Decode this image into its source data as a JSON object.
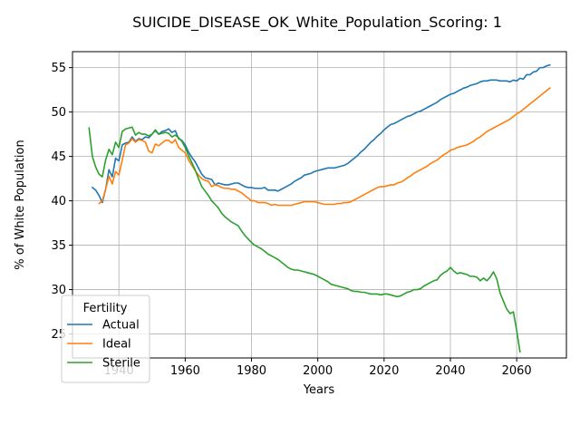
{
  "chart_data": {
    "type": "line",
    "title": "SUICIDE_DISEASE_OK_White_Population_Scoring: 1",
    "xlabel": "Years",
    "ylabel": "% of White Population",
    "xlim": [
      1926,
      2075
    ],
    "ylim": [
      22.3,
      56.8
    ],
    "xticks": [
      1940,
      1960,
      1980,
      2000,
      2020,
      2040,
      2060
    ],
    "yticks": [
      25,
      30,
      35,
      40,
      45,
      50,
      55
    ],
    "grid": true,
    "legend": {
      "title": "Fertility",
      "placement": "lower-left"
    },
    "series": [
      {
        "name": "Actual",
        "color": "#1f77b4",
        "x": [
          1932,
          1933,
          1934,
          1935,
          1936,
          1937,
          1938,
          1939,
          1940,
          1941,
          1942,
          1943,
          1944,
          1945,
          1946,
          1947,
          1948,
          1949,
          1950,
          1951,
          1952,
          1953,
          1954,
          1955,
          1956,
          1957,
          1958,
          1959,
          1960,
          1961,
          1962,
          1963,
          1964,
          1965,
          1966,
          1967,
          1968,
          1969,
          1970,
          1971,
          1972,
          1973,
          1974,
          1975,
          1976,
          1977,
          1978,
          1979,
          1980,
          1981,
          1982,
          1983,
          1984,
          1985,
          1986,
          1987,
          1988,
          1989,
          1990,
          1991,
          1992,
          1993,
          1994,
          1995,
          1996,
          1997,
          1998,
          1999,
          2000,
          2001,
          2002,
          2003,
          2004,
          2005,
          2006,
          2007,
          2008,
          2009,
          2010,
          2011,
          2012,
          2013,
          2014,
          2015,
          2016,
          2017,
          2018,
          2019,
          2020,
          2021,
          2022,
          2023,
          2024,
          2025,
          2026,
          2027,
          2028,
          2029,
          2030,
          2031,
          2032,
          2033,
          2034,
          2035,
          2036,
          2037,
          2038,
          2039,
          2040,
          2041,
          2042,
          2043,
          2044,
          2045,
          2046,
          2047,
          2048,
          2049,
          2050,
          2051,
          2052,
          2053,
          2054,
          2055,
          2056,
          2057,
          2058,
          2059,
          2060,
          2061,
          2062,
          2063,
          2064,
          2065,
          2066,
          2067,
          2068,
          2069,
          2070
        ],
        "y": [
          41.5,
          41.2,
          40.6,
          39.8,
          41.3,
          43.5,
          42.7,
          44.8,
          44.5,
          46.3,
          46.5,
          46.6,
          47.2,
          46.7,
          47.0,
          46.9,
          47.2,
          47.1,
          47.5,
          47.9,
          47.5,
          47.8,
          47.9,
          48.1,
          47.7,
          47.9,
          47.0,
          46.8,
          46.3,
          45.5,
          44.9,
          44.4,
          43.7,
          43.0,
          42.6,
          42.5,
          42.4,
          41.8,
          42.0,
          41.9,
          41.8,
          41.8,
          41.9,
          42.0,
          42.0,
          41.8,
          41.6,
          41.5,
          41.5,
          41.4,
          41.4,
          41.4,
          41.5,
          41.2,
          41.2,
          41.2,
          41.1,
          41.3,
          41.5,
          41.7,
          41.9,
          42.2,
          42.4,
          42.6,
          42.9,
          43.0,
          43.1,
          43.3,
          43.4,
          43.5,
          43.6,
          43.7,
          43.7,
          43.7,
          43.8,
          43.9,
          44.0,
          44.2,
          44.5,
          44.8,
          45.1,
          45.5,
          45.8,
          46.2,
          46.6,
          46.9,
          47.3,
          47.6,
          48.0,
          48.3,
          48.6,
          48.7,
          48.9,
          49.1,
          49.3,
          49.5,
          49.6,
          49.8,
          50.0,
          50.1,
          50.3,
          50.5,
          50.7,
          50.9,
          51.1,
          51.4,
          51.6,
          51.8,
          52.0,
          52.1,
          52.3,
          52.5,
          52.7,
          52.8,
          53.0,
          53.1,
          53.2,
          53.4,
          53.5,
          53.5,
          53.6,
          53.6,
          53.6,
          53.5,
          53.5,
          53.5,
          53.4,
          53.6,
          53.5,
          53.8,
          53.7,
          54.2,
          54.2,
          54.5,
          54.6,
          55.0,
          55.0,
          55.2,
          55.3
        ]
      },
      {
        "name": "Ideal",
        "color": "#ff7f0e",
        "x": [
          1934,
          1935,
          1936,
          1937,
          1938,
          1939,
          1940,
          1941,
          1942,
          1943,
          1944,
          1945,
          1946,
          1947,
          1948,
          1949,
          1950,
          1951,
          1952,
          1953,
          1954,
          1955,
          1956,
          1957,
          1958,
          1959,
          1960,
          1961,
          1962,
          1963,
          1964,
          1965,
          1966,
          1967,
          1968,
          1969,
          1970,
          1971,
          1972,
          1973,
          1974,
          1975,
          1976,
          1977,
          1978,
          1979,
          1980,
          1981,
          1982,
          1983,
          1984,
          1985,
          1986,
          1987,
          1988,
          1989,
          1990,
          1991,
          1992,
          1993,
          1994,
          1995,
          1996,
          1997,
          1998,
          1999,
          2000,
          2001,
          2002,
          2003,
          2004,
          2005,
          2006,
          2007,
          2008,
          2009,
          2010,
          2011,
          2012,
          2013,
          2014,
          2015,
          2016,
          2017,
          2018,
          2019,
          2020,
          2021,
          2022,
          2023,
          2024,
          2025,
          2026,
          2027,
          2028,
          2029,
          2030,
          2031,
          2032,
          2033,
          2034,
          2035,
          2036,
          2037,
          2038,
          2039,
          2040,
          2041,
          2042,
          2043,
          2044,
          2045,
          2046,
          2047,
          2048,
          2049,
          2050,
          2051,
          2052,
          2053,
          2054,
          2055,
          2056,
          2057,
          2058,
          2059,
          2060,
          2061,
          2062,
          2063,
          2064,
          2065,
          2066,
          2067,
          2068,
          2069,
          2070
        ],
        "y": [
          39.7,
          40.0,
          41.3,
          42.8,
          41.9,
          43.3,
          42.9,
          44.6,
          46.3,
          46.5,
          47.0,
          46.6,
          46.9,
          46.8,
          46.6,
          45.6,
          45.4,
          46.4,
          46.2,
          46.5,
          46.8,
          46.8,
          46.5,
          46.9,
          46.0,
          45.7,
          45.4,
          44.6,
          44.0,
          43.4,
          42.9,
          42.5,
          42.3,
          42.2,
          41.6,
          41.8,
          41.7,
          41.5,
          41.4,
          41.4,
          41.3,
          41.3,
          41.1,
          40.9,
          40.6,
          40.3,
          40.0,
          40.0,
          39.8,
          39.8,
          39.8,
          39.7,
          39.5,
          39.6,
          39.5,
          39.5,
          39.5,
          39.5,
          39.5,
          39.6,
          39.7,
          39.8,
          39.9,
          39.9,
          39.9,
          39.9,
          39.8,
          39.7,
          39.6,
          39.6,
          39.6,
          39.6,
          39.7,
          39.7,
          39.8,
          39.8,
          39.9,
          40.1,
          40.3,
          40.5,
          40.7,
          40.9,
          41.1,
          41.3,
          41.5,
          41.6,
          41.6,
          41.7,
          41.8,
          41.8,
          42.0,
          42.1,
          42.3,
          42.6,
          42.8,
          43.1,
          43.3,
          43.5,
          43.7,
          43.9,
          44.2,
          44.4,
          44.6,
          44.9,
          45.2,
          45.4,
          45.7,
          45.8,
          46.0,
          46.1,
          46.2,
          46.3,
          46.5,
          46.7,
          47.0,
          47.2,
          47.5,
          47.8,
          48.0,
          48.2,
          48.4,
          48.6,
          48.8,
          49.0,
          49.2,
          49.5,
          49.8,
          50.0,
          50.3,
          50.6,
          50.9,
          51.2,
          51.5,
          51.8,
          52.1,
          52.4,
          52.7
        ]
      },
      {
        "name": "Sterile",
        "color": "#2ca02c",
        "x": [
          1931,
          1932,
          1933,
          1934,
          1935,
          1936,
          1937,
          1938,
          1939,
          1940,
          1941,
          1942,
          1943,
          1944,
          1945,
          1946,
          1947,
          1948,
          1949,
          1950,
          1951,
          1952,
          1953,
          1954,
          1955,
          1956,
          1957,
          1958,
          1959,
          1960,
          1961,
          1962,
          1963,
          1964,
          1965,
          1966,
          1967,
          1968,
          1969,
          1970,
          1971,
          1972,
          1973,
          1974,
          1975,
          1976,
          1977,
          1978,
          1979,
          1980,
          1981,
          1982,
          1983,
          1984,
          1985,
          1986,
          1987,
          1988,
          1989,
          1990,
          1991,
          1992,
          1993,
          1994,
          1995,
          1996,
          1997,
          1998,
          1999,
          2000,
          2001,
          2002,
          2003,
          2004,
          2005,
          2006,
          2007,
          2008,
          2009,
          2010,
          2011,
          2012,
          2013,
          2014,
          2015,
          2016,
          2017,
          2018,
          2019,
          2020,
          2021,
          2022,
          2023,
          2024,
          2025,
          2026,
          2027,
          2028,
          2029,
          2030,
          2031,
          2032,
          2033,
          2034,
          2035,
          2036,
          2037,
          2038,
          2039,
          2040,
          2041,
          2042,
          2043,
          2044,
          2045,
          2046,
          2047,
          2048,
          2049,
          2050,
          2051,
          2052,
          2053,
          2054,
          2055,
          2056,
          2057,
          2058,
          2059,
          2060,
          2061
        ],
        "y": [
          48.2,
          45.0,
          43.8,
          43.0,
          42.7,
          44.6,
          45.8,
          45.2,
          46.6,
          46.0,
          47.8,
          48.1,
          48.2,
          48.3,
          47.4,
          47.7,
          47.5,
          47.5,
          47.3,
          47.5,
          48.0,
          47.5,
          47.6,
          47.7,
          47.6,
          47.2,
          47.4,
          47.1,
          46.7,
          46.0,
          45.1,
          44.3,
          43.5,
          42.5,
          41.6,
          41.1,
          40.6,
          40.0,
          39.6,
          39.2,
          38.6,
          38.2,
          37.9,
          37.6,
          37.4,
          37.2,
          36.6,
          36.1,
          35.7,
          35.3,
          35.0,
          34.8,
          34.6,
          34.3,
          34.0,
          33.8,
          33.6,
          33.4,
          33.1,
          32.8,
          32.5,
          32.3,
          32.2,
          32.2,
          32.1,
          32.0,
          31.9,
          31.8,
          31.7,
          31.5,
          31.3,
          31.1,
          30.9,
          30.6,
          30.5,
          30.4,
          30.3,
          30.2,
          30.1,
          29.9,
          29.8,
          29.8,
          29.7,
          29.7,
          29.6,
          29.5,
          29.5,
          29.5,
          29.4,
          29.5,
          29.5,
          29.4,
          29.3,
          29.2,
          29.3,
          29.5,
          29.7,
          29.8,
          30.0,
          30.0,
          30.1,
          30.4,
          30.6,
          30.8,
          31.0,
          31.1,
          31.6,
          31.9,
          32.1,
          32.5,
          32.1,
          31.8,
          31.9,
          31.8,
          31.7,
          31.5,
          31.5,
          31.4,
          31.0,
          31.3,
          31.0,
          31.4,
          32.0,
          31.2,
          29.6,
          28.7,
          27.8,
          27.3,
          27.5,
          25.4,
          23.0
        ]
      }
    ]
  }
}
